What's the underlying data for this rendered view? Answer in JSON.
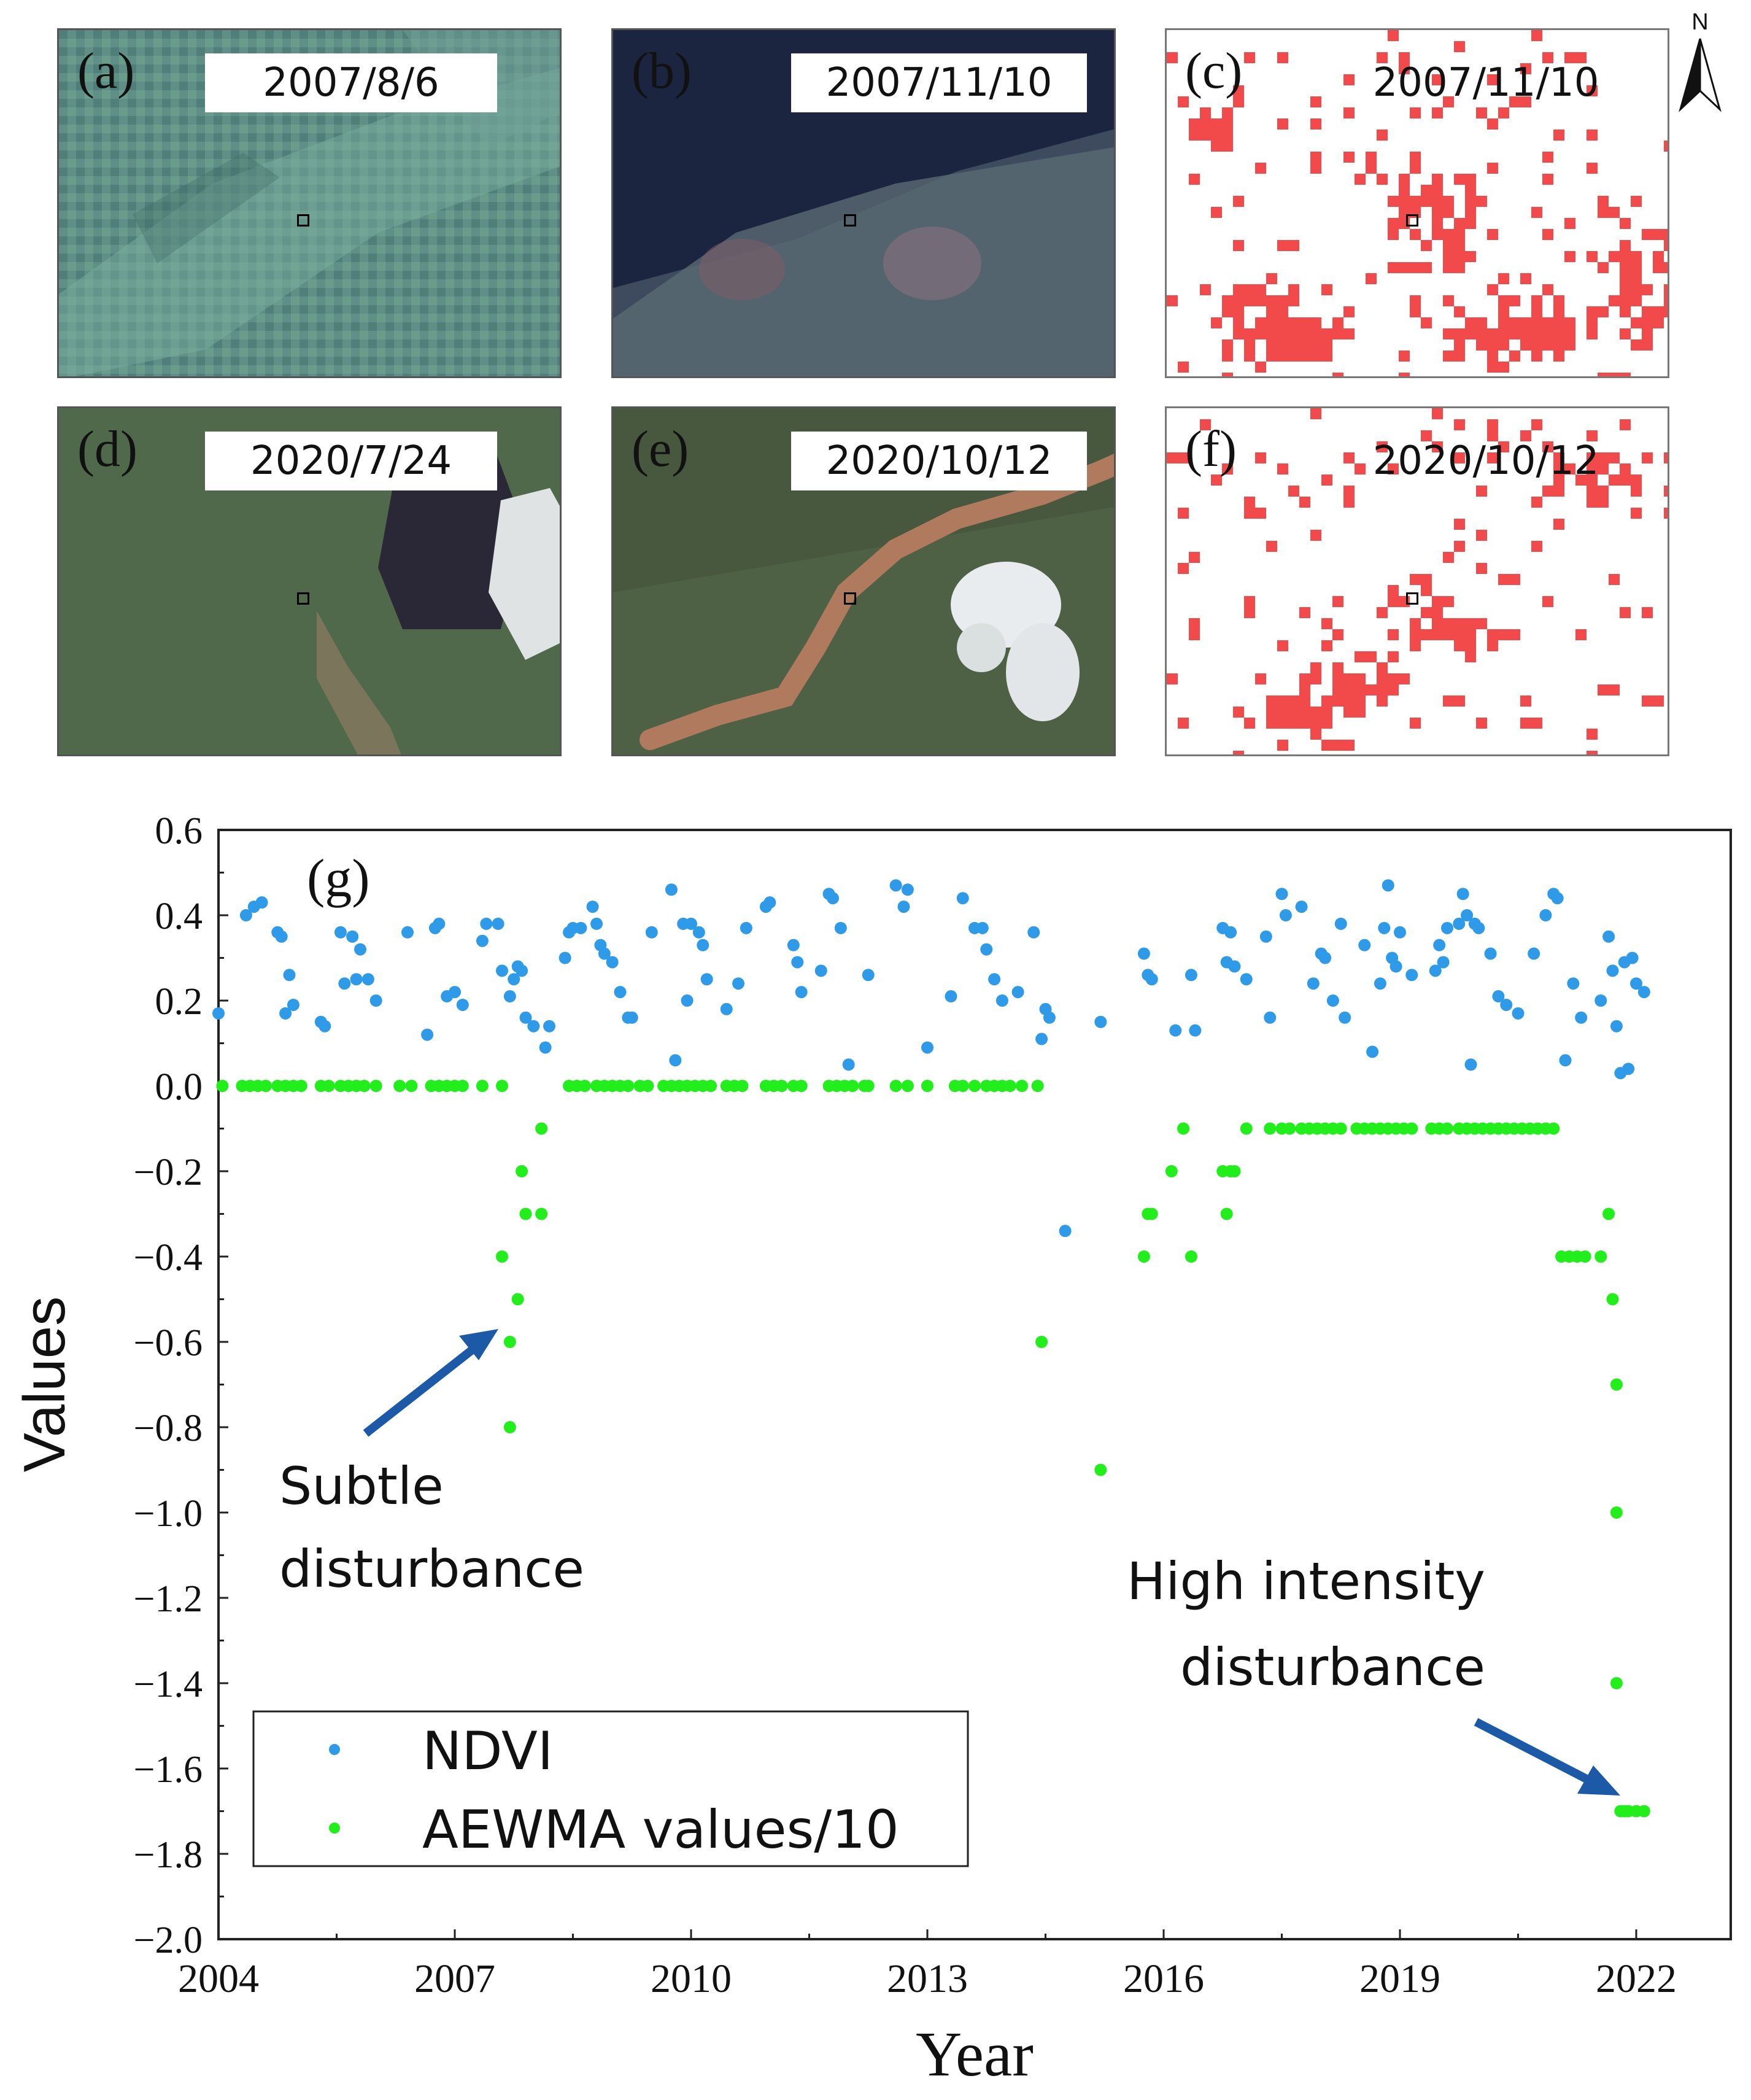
{
  "panels": [
    {
      "letter": "(a)",
      "date": "2007/8/6",
      "kind": "satellite"
    },
    {
      "letter": "(b)",
      "date": "2007/11/10",
      "kind": "satellite"
    },
    {
      "letter": "(c)",
      "date": "2007/11/10",
      "kind": "disturbance-map"
    },
    {
      "letter": "(d)",
      "date": "2020/7/24",
      "kind": "satellite"
    },
    {
      "letter": "(e)",
      "date": "2020/10/12",
      "kind": "satellite"
    },
    {
      "letter": "(f)",
      "date": "2020/10/12",
      "kind": "disturbance-map"
    }
  ],
  "north_arrow": {
    "label": "N"
  },
  "colors": {
    "ndvi": "#2f9be8",
    "aewma": "#22ee1c",
    "disturbance": "#f24a4a",
    "arrow": "#1c5aa8"
  },
  "annotations": {
    "subtle": [
      "Subtle",
      "disturbance"
    ],
    "high": [
      "High intensity",
      "disturbance"
    ]
  },
  "chart_data": {
    "type": "scatter",
    "panel_label": "(g)",
    "title": "",
    "xlabel": "Year",
    "ylabel": "Values",
    "xlim": [
      2004,
      2023.2
    ],
    "ylim": [
      -2.0,
      0.6
    ],
    "xticks": [
      2004,
      2007,
      2010,
      2013,
      2016,
      2019,
      2022
    ],
    "yticks": [
      0.6,
      0.4,
      0.2,
      0.0,
      -0.2,
      -0.4,
      -0.6,
      -0.8,
      -1.0,
      -1.2,
      -1.4,
      -1.6,
      -1.8,
      -2.0
    ],
    "ytick_labels": [
      "0.6",
      "0.4",
      "0.2",
      "0.0",
      "−0.2",
      "−0.4",
      "−0.6",
      "−0.8",
      "−1.0",
      "−1.2",
      "−1.4",
      "−1.6",
      "−1.8",
      "−2.0"
    ],
    "legend": {
      "position": "bottom-left"
    },
    "series": [
      {
        "name": "NDVI",
        "points": [
          [
            2004.0,
            0.17
          ],
          [
            2004.35,
            0.4
          ],
          [
            2004.45,
            0.42
          ],
          [
            2004.55,
            0.43
          ],
          [
            2004.75,
            0.36
          ],
          [
            2004.8,
            0.35
          ],
          [
            2004.85,
            0.17
          ],
          [
            2004.9,
            0.26
          ],
          [
            2004.95,
            0.19
          ],
          [
            2005.3,
            0.15
          ],
          [
            2005.35,
            0.14
          ],
          [
            2005.55,
            0.36
          ],
          [
            2005.6,
            0.24
          ],
          [
            2005.7,
            0.35
          ],
          [
            2005.75,
            0.25
          ],
          [
            2005.8,
            0.32
          ],
          [
            2005.9,
            0.25
          ],
          [
            2006.0,
            0.2
          ],
          [
            2006.4,
            0.36
          ],
          [
            2006.65,
            0.12
          ],
          [
            2006.75,
            0.37
          ],
          [
            2006.8,
            0.38
          ],
          [
            2006.9,
            0.21
          ],
          [
            2007.0,
            0.22
          ],
          [
            2007.1,
            0.19
          ],
          [
            2007.35,
            0.34
          ],
          [
            2007.4,
            0.38
          ],
          [
            2007.55,
            0.38
          ],
          [
            2007.6,
            0.27
          ],
          [
            2007.7,
            0.21
          ],
          [
            2007.75,
            0.25
          ],
          [
            2007.8,
            0.28
          ],
          [
            2007.85,
            0.27
          ],
          [
            2007.9,
            0.16
          ],
          [
            2008.0,
            0.14
          ],
          [
            2008.15,
            0.09
          ],
          [
            2008.2,
            0.14
          ],
          [
            2008.4,
            0.3
          ],
          [
            2008.45,
            0.36
          ],
          [
            2008.5,
            0.37
          ],
          [
            2008.6,
            0.37
          ],
          [
            2008.75,
            0.42
          ],
          [
            2008.8,
            0.38
          ],
          [
            2008.85,
            0.33
          ],
          [
            2008.9,
            0.31
          ],
          [
            2009.0,
            0.29
          ],
          [
            2009.1,
            0.22
          ],
          [
            2009.2,
            0.16
          ],
          [
            2009.25,
            0.16
          ],
          [
            2009.5,
            0.36
          ],
          [
            2009.75,
            0.46
          ],
          [
            2009.8,
            0.06
          ],
          [
            2009.9,
            0.38
          ],
          [
            2009.95,
            0.2
          ],
          [
            2010.0,
            0.38
          ],
          [
            2010.1,
            0.36
          ],
          [
            2010.15,
            0.33
          ],
          [
            2010.2,
            0.25
          ],
          [
            2010.45,
            0.18
          ],
          [
            2010.6,
            0.24
          ],
          [
            2010.7,
            0.37
          ],
          [
            2010.95,
            0.42
          ],
          [
            2011.0,
            0.43
          ],
          [
            2011.3,
            0.33
          ],
          [
            2011.35,
            0.29
          ],
          [
            2011.4,
            0.22
          ],
          [
            2011.65,
            0.27
          ],
          [
            2011.75,
            0.45
          ],
          [
            2011.8,
            0.44
          ],
          [
            2011.9,
            0.37
          ],
          [
            2012.0,
            0.05
          ],
          [
            2012.25,
            0.26
          ],
          [
            2012.6,
            0.47
          ],
          [
            2012.7,
            0.42
          ],
          [
            2012.75,
            0.46
          ],
          [
            2013.0,
            0.09
          ],
          [
            2013.3,
            0.21
          ],
          [
            2013.45,
            0.44
          ],
          [
            2013.6,
            0.37
          ],
          [
            2013.7,
            0.37
          ],
          [
            2013.75,
            0.32
          ],
          [
            2013.85,
            0.25
          ],
          [
            2013.95,
            0.2
          ],
          [
            2014.15,
            0.22
          ],
          [
            2014.35,
            0.36
          ],
          [
            2014.45,
            0.11
          ],
          [
            2014.5,
            0.18
          ],
          [
            2014.55,
            0.16
          ],
          [
            2014.75,
            -0.34
          ],
          [
            2015.2,
            0.15
          ],
          [
            2015.75,
            0.31
          ],
          [
            2015.8,
            0.26
          ],
          [
            2015.85,
            0.25
          ],
          [
            2016.15,
            0.13
          ],
          [
            2016.35,
            0.26
          ],
          [
            2016.4,
            0.13
          ],
          [
            2016.75,
            0.37
          ],
          [
            2016.8,
            0.29
          ],
          [
            2016.85,
            0.36
          ],
          [
            2016.9,
            0.28
          ],
          [
            2017.05,
            0.25
          ],
          [
            2017.3,
            0.35
          ],
          [
            2017.35,
            0.16
          ],
          [
            2017.5,
            0.45
          ],
          [
            2017.55,
            0.4
          ],
          [
            2017.75,
            0.42
          ],
          [
            2017.9,
            0.24
          ],
          [
            2018.0,
            0.31
          ],
          [
            2018.05,
            0.3
          ],
          [
            2018.15,
            0.2
          ],
          [
            2018.25,
            0.38
          ],
          [
            2018.3,
            0.16
          ],
          [
            2018.55,
            0.33
          ],
          [
            2018.65,
            0.08
          ],
          [
            2018.75,
            0.24
          ],
          [
            2018.8,
            0.37
          ],
          [
            2018.85,
            0.47
          ],
          [
            2018.9,
            0.3
          ],
          [
            2018.95,
            0.28
          ],
          [
            2019.0,
            0.36
          ],
          [
            2019.15,
            0.26
          ],
          [
            2019.45,
            0.27
          ],
          [
            2019.5,
            0.33
          ],
          [
            2019.55,
            0.29
          ],
          [
            2019.6,
            0.37
          ],
          [
            2019.75,
            0.38
          ],
          [
            2019.8,
            0.45
          ],
          [
            2019.85,
            0.4
          ],
          [
            2019.9,
            0.05
          ],
          [
            2019.95,
            0.38
          ],
          [
            2020.0,
            0.37
          ],
          [
            2020.15,
            0.31
          ],
          [
            2020.25,
            0.21
          ],
          [
            2020.35,
            0.19
          ],
          [
            2020.5,
            0.17
          ],
          [
            2020.7,
            0.31
          ],
          [
            2020.85,
            0.4
          ],
          [
            2020.95,
            0.45
          ],
          [
            2021.0,
            0.44
          ],
          [
            2021.1,
            0.06
          ],
          [
            2021.2,
            0.24
          ],
          [
            2021.3,
            0.16
          ],
          [
            2021.55,
            0.2
          ],
          [
            2021.65,
            0.35
          ],
          [
            2021.7,
            0.27
          ],
          [
            2021.75,
            0.14
          ],
          [
            2021.8,
            0.03
          ],
          [
            2021.85,
            0.29
          ],
          [
            2021.9,
            0.04
          ],
          [
            2021.95,
            0.3
          ],
          [
            2022.0,
            0.24
          ],
          [
            2022.1,
            0.22
          ]
        ]
      },
      {
        "name": "AEWMA values/10",
        "points": [
          [
            2004.05,
            0.0
          ],
          [
            2004.3,
            0.0
          ],
          [
            2004.4,
            0.0
          ],
          [
            2004.5,
            0.0
          ],
          [
            2004.6,
            0.0
          ],
          [
            2004.75,
            0.0
          ],
          [
            2004.85,
            0.0
          ],
          [
            2004.95,
            0.0
          ],
          [
            2005.05,
            0.0
          ],
          [
            2005.3,
            0.0
          ],
          [
            2005.4,
            0.0
          ],
          [
            2005.55,
            0.0
          ],
          [
            2005.65,
            0.0
          ],
          [
            2005.75,
            0.0
          ],
          [
            2005.85,
            0.0
          ],
          [
            2006.0,
            0.0
          ],
          [
            2006.3,
            0.0
          ],
          [
            2006.45,
            0.0
          ],
          [
            2006.7,
            0.0
          ],
          [
            2006.8,
            0.0
          ],
          [
            2006.9,
            0.0
          ],
          [
            2007.0,
            0.0
          ],
          [
            2007.1,
            0.0
          ],
          [
            2007.35,
            0.0
          ],
          [
            2007.6,
            0.0
          ],
          [
            2007.6,
            -0.4
          ],
          [
            2007.7,
            -0.6
          ],
          [
            2007.7,
            -0.8
          ],
          [
            2007.8,
            -0.5
          ],
          [
            2007.85,
            -0.2
          ],
          [
            2007.9,
            -0.3
          ],
          [
            2008.1,
            -0.3
          ],
          [
            2008.1,
            -0.1
          ],
          [
            2008.45,
            0.0
          ],
          [
            2008.55,
            0.0
          ],
          [
            2008.65,
            0.0
          ],
          [
            2008.8,
            0.0
          ],
          [
            2008.9,
            0.0
          ],
          [
            2009.0,
            0.0
          ],
          [
            2009.1,
            0.0
          ],
          [
            2009.2,
            0.0
          ],
          [
            2009.35,
            0.0
          ],
          [
            2009.45,
            0.0
          ],
          [
            2009.65,
            0.0
          ],
          [
            2009.75,
            0.0
          ],
          [
            2009.85,
            0.0
          ],
          [
            2009.95,
            0.0
          ],
          [
            2010.05,
            0.0
          ],
          [
            2010.15,
            0.0
          ],
          [
            2010.25,
            0.0
          ],
          [
            2010.45,
            0.0
          ],
          [
            2010.55,
            0.0
          ],
          [
            2010.65,
            0.0
          ],
          [
            2010.95,
            0.0
          ],
          [
            2011.05,
            0.0
          ],
          [
            2011.15,
            0.0
          ],
          [
            2011.3,
            0.0
          ],
          [
            2011.4,
            0.0
          ],
          [
            2011.75,
            0.0
          ],
          [
            2011.85,
            0.0
          ],
          [
            2011.95,
            0.0
          ],
          [
            2012.05,
            0.0
          ],
          [
            2012.2,
            0.0
          ],
          [
            2012.25,
            0.0
          ],
          [
            2012.6,
            0.0
          ],
          [
            2012.75,
            0.0
          ],
          [
            2013.0,
            0.0
          ],
          [
            2013.35,
            0.0
          ],
          [
            2013.45,
            0.0
          ],
          [
            2013.6,
            0.0
          ],
          [
            2013.75,
            0.0
          ],
          [
            2013.85,
            0.0
          ],
          [
            2013.95,
            0.0
          ],
          [
            2014.05,
            0.0
          ],
          [
            2014.2,
            0.0
          ],
          [
            2014.4,
            0.0
          ],
          [
            2014.45,
            -0.6
          ],
          [
            2015.2,
            -0.9
          ],
          [
            2015.75,
            -0.4
          ],
          [
            2015.8,
            -0.3
          ],
          [
            2015.85,
            -0.3
          ],
          [
            2016.1,
            -0.2
          ],
          [
            2016.25,
            -0.1
          ],
          [
            2016.35,
            -0.4
          ],
          [
            2016.75,
            -0.2
          ],
          [
            2016.8,
            -0.3
          ],
          [
            2016.85,
            -0.2
          ],
          [
            2016.9,
            -0.2
          ],
          [
            2017.05,
            -0.1
          ],
          [
            2017.35,
            -0.1
          ],
          [
            2017.5,
            -0.1
          ],
          [
            2017.6,
            -0.1
          ],
          [
            2017.75,
            -0.1
          ],
          [
            2017.85,
            -0.1
          ],
          [
            2017.95,
            -0.1
          ],
          [
            2018.05,
            -0.1
          ],
          [
            2018.15,
            -0.1
          ],
          [
            2018.25,
            -0.1
          ],
          [
            2018.45,
            -0.1
          ],
          [
            2018.55,
            -0.1
          ],
          [
            2018.65,
            -0.1
          ],
          [
            2018.75,
            -0.1
          ],
          [
            2018.85,
            -0.1
          ],
          [
            2018.95,
            -0.1
          ],
          [
            2019.05,
            -0.1
          ],
          [
            2019.15,
            -0.1
          ],
          [
            2019.4,
            -0.1
          ],
          [
            2019.5,
            -0.1
          ],
          [
            2019.6,
            -0.1
          ],
          [
            2019.75,
            -0.1
          ],
          [
            2019.85,
            -0.1
          ],
          [
            2019.95,
            -0.1
          ],
          [
            2020.05,
            -0.1
          ],
          [
            2020.15,
            -0.1
          ],
          [
            2020.25,
            -0.1
          ],
          [
            2020.35,
            -0.1
          ],
          [
            2020.45,
            -0.1
          ],
          [
            2020.55,
            -0.1
          ],
          [
            2020.65,
            -0.1
          ],
          [
            2020.75,
            -0.1
          ],
          [
            2020.85,
            -0.1
          ],
          [
            2020.95,
            -0.1
          ],
          [
            2021.05,
            -0.4
          ],
          [
            2021.15,
            -0.4
          ],
          [
            2021.25,
            -0.4
          ],
          [
            2021.35,
            -0.4
          ],
          [
            2021.55,
            -0.4
          ],
          [
            2021.65,
            -0.3
          ],
          [
            2021.7,
            -0.5
          ],
          [
            2021.75,
            -0.7
          ],
          [
            2021.75,
            -1.0
          ],
          [
            2021.75,
            -1.4
          ],
          [
            2021.8,
            -1.7
          ],
          [
            2021.85,
            -1.7
          ],
          [
            2021.9,
            -1.7
          ],
          [
            2022.0,
            -1.7
          ],
          [
            2022.1,
            -1.7
          ]
        ]
      }
    ]
  }
}
